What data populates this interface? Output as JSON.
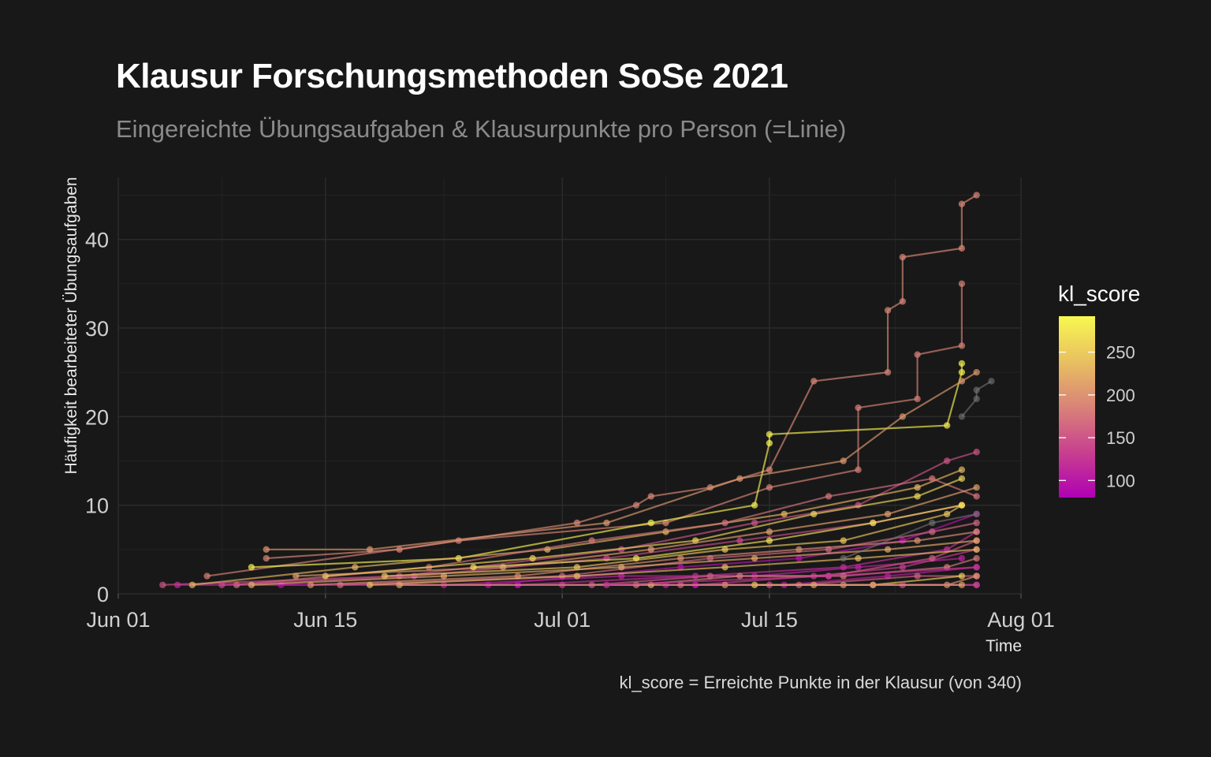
{
  "title": "Klausur Forschungsmethoden SoSe 2021",
  "subtitle": "Eingereichte Übungsaufgaben & Klausurpunkte pro Person (=Linie)",
  "caption": "kl_score = Erreichte Punkte in der Klausur (von 340)",
  "chart_data": {
    "type": "line",
    "title": "Klausur Forschungsmethoden SoSe 2021",
    "subtitle": "Eingereichte Übungsaufgaben & Klausurpunkte pro Person (=Linie)",
    "xlabel": "Time",
    "ylabel": "Häufigkeit bearbeiteter Übungsaufgaben",
    "x_ticks": [
      "Jun 01",
      "Jun 15",
      "Jul 01",
      "Jul 15",
      "Aug 01"
    ],
    "x_tick_dates": [
      "2021-06-01",
      "2021-06-15",
      "2021-07-01",
      "2021-07-15",
      "2021-08-01"
    ],
    "xlim": [
      "2021-06-01",
      "2021-08-01"
    ],
    "y_ticks": [
      0,
      10,
      20,
      30,
      40
    ],
    "ylim": [
      0,
      47
    ],
    "grid": true,
    "background": "#181818",
    "legend": {
      "title": "kl_score",
      "position": "right",
      "type": "colorbar",
      "range": [
        80,
        292
      ],
      "ticks": [
        100,
        150,
        200,
        250
      ],
      "colors": [
        "#b000b3",
        "#c8408f",
        "#d98378",
        "#e8c060",
        "#f8f850"
      ]
    },
    "series": [
      {
        "kl_score": 190,
        "points": [
          [
            "2021-06-11",
            4
          ],
          [
            "2021-06-20",
            5
          ],
          [
            "2021-07-02",
            8
          ],
          [
            "2021-07-06",
            10
          ],
          [
            "2021-07-07",
            11
          ],
          [
            "2021-07-11",
            12
          ],
          [
            "2021-07-15",
            14
          ],
          [
            "2021-07-18",
            24
          ],
          [
            "2021-07-23",
            25
          ],
          [
            "2021-07-23",
            32
          ],
          [
            "2021-07-24",
            33
          ],
          [
            "2021-07-24",
            38
          ],
          [
            "2021-07-28",
            39
          ],
          [
            "2021-07-28",
            44
          ],
          [
            "2021-07-29",
            45
          ]
        ]
      },
      {
        "kl_score": 185,
        "points": [
          [
            "2021-06-07",
            2
          ],
          [
            "2021-06-24",
            6
          ],
          [
            "2021-07-08",
            8
          ],
          [
            "2021-07-15",
            12
          ],
          [
            "2021-07-21",
            14
          ],
          [
            "2021-07-21",
            21
          ],
          [
            "2021-07-25",
            22
          ],
          [
            "2021-07-25",
            27
          ],
          [
            "2021-07-28",
            28
          ],
          [
            "2021-07-28",
            35
          ]
        ]
      },
      {
        "kl_score": 285,
        "points": [
          [
            "2021-06-10",
            3
          ],
          [
            "2021-06-24",
            4
          ],
          [
            "2021-07-07",
            8
          ],
          [
            "2021-07-14",
            10
          ],
          [
            "2021-07-15",
            17
          ],
          [
            "2021-07-15",
            18
          ],
          [
            "2021-07-27",
            19
          ],
          [
            "2021-07-28",
            25
          ],
          [
            "2021-07-28",
            26
          ]
        ]
      },
      {
        "kl_score": 205,
        "points": [
          [
            "2021-06-11",
            5
          ],
          [
            "2021-06-18",
            5
          ],
          [
            "2021-07-04",
            8
          ],
          [
            "2021-07-13",
            13
          ],
          [
            "2021-07-20",
            15
          ],
          [
            "2021-07-24",
            20
          ],
          [
            "2021-07-28",
            24
          ],
          [
            "2021-07-29",
            25
          ]
        ]
      },
      {
        "kl_score": 150,
        "points": [
          [
            "2021-06-04",
            1
          ],
          [
            "2021-06-20",
            2
          ],
          [
            "2021-07-05",
            5
          ],
          [
            "2021-07-14",
            8
          ],
          [
            "2021-07-21",
            10
          ],
          [
            "2021-07-27",
            15
          ],
          [
            "2021-07-29",
            16
          ]
        ]
      },
      {
        "kl_score": 120,
        "points": [
          [
            "2021-06-05",
            1
          ],
          [
            "2021-06-28",
            1
          ],
          [
            "2021-07-10",
            2
          ],
          [
            "2021-07-20",
            3
          ],
          [
            "2021-07-27",
            5
          ],
          [
            "2021-07-29",
            7
          ]
        ]
      },
      {
        "kl_score": 230,
        "points": [
          [
            "2021-06-06",
            1
          ],
          [
            "2021-06-17",
            3
          ],
          [
            "2021-06-30",
            5
          ],
          [
            "2021-07-08",
            7
          ],
          [
            "2021-07-16",
            9
          ],
          [
            "2021-07-25",
            12
          ],
          [
            "2021-07-28",
            14
          ]
        ]
      },
      {
        "kl_score": 175,
        "points": [
          [
            "2021-06-09",
            1
          ],
          [
            "2021-06-22",
            3
          ],
          [
            "2021-07-03",
            6
          ],
          [
            "2021-07-12",
            8
          ],
          [
            "2021-07-19",
            11
          ],
          [
            "2021-07-26",
            13
          ],
          [
            "2021-07-29",
            11
          ]
        ]
      },
      {
        "kl_score": 95,
        "points": [
          [
            "2021-06-12",
            1
          ],
          [
            "2021-06-26",
            1
          ],
          [
            "2021-07-09",
            3
          ],
          [
            "2021-07-17",
            4
          ],
          [
            "2021-07-24",
            6
          ],
          [
            "2021-07-29",
            9
          ]
        ]
      },
      {
        "kl_score": 260,
        "points": [
          [
            "2021-06-15",
            2
          ],
          [
            "2021-06-29",
            4
          ],
          [
            "2021-07-10",
            6
          ],
          [
            "2021-07-18",
            9
          ],
          [
            "2021-07-25",
            11
          ],
          [
            "2021-07-28",
            13
          ]
        ]
      },
      {
        "kl_score": 140,
        "points": [
          [
            "2021-06-08",
            1
          ],
          [
            "2021-06-21",
            2
          ],
          [
            "2021-07-04",
            4
          ],
          [
            "2021-07-13",
            6
          ],
          [
            "2021-07-22",
            8
          ],
          [
            "2021-07-28",
            10
          ]
        ]
      },
      {
        "kl_score": 210,
        "points": [
          [
            "2021-06-13",
            2
          ],
          [
            "2021-06-27",
            3
          ],
          [
            "2021-07-07",
            5
          ],
          [
            "2021-07-15",
            7
          ],
          [
            "2021-07-23",
            9
          ],
          [
            "2021-07-29",
            12
          ]
        ]
      },
      {
        "kl_score": 165,
        "points": [
          [
            "2021-06-16",
            1
          ],
          [
            "2021-07-01",
            2
          ],
          [
            "2021-07-11",
            4
          ],
          [
            "2021-07-19",
            5
          ],
          [
            "2021-07-26",
            7
          ],
          [
            "2021-07-29",
            8
          ]
        ]
      },
      {
        "kl_score": 245,
        "points": [
          [
            "2021-06-19",
            2
          ],
          [
            "2021-07-02",
            3
          ],
          [
            "2021-07-12",
            5
          ],
          [
            "2021-07-20",
            6
          ],
          [
            "2021-07-27",
            9
          ],
          [
            "2021-07-28",
            10
          ]
        ]
      },
      {
        "kl_score": 110,
        "points": [
          [
            "2021-06-23",
            1
          ],
          [
            "2021-07-05",
            2
          ],
          [
            "2021-07-14",
            2
          ],
          [
            "2021-07-21",
            3
          ],
          [
            "2021-07-28",
            4
          ]
        ]
      },
      {
        "kl_score": 195,
        "points": [
          [
            "2021-06-14",
            1
          ],
          [
            "2021-06-28",
            2
          ],
          [
            "2021-07-09",
            4
          ],
          [
            "2021-07-17",
            5
          ],
          [
            "2021-07-25",
            6
          ],
          [
            "2021-07-29",
            7
          ]
        ]
      },
      {
        "kl_score": 130,
        "points": [
          [
            "2021-07-01",
            1
          ],
          [
            "2021-07-10",
            1
          ],
          [
            "2021-07-18",
            2
          ],
          [
            "2021-07-24",
            3
          ],
          [
            "2021-07-29",
            5
          ]
        ]
      },
      {
        "kl_score": 270,
        "points": [
          [
            "2021-06-25",
            3
          ],
          [
            "2021-07-06",
            4
          ],
          [
            "2021-07-15",
            6
          ],
          [
            "2021-07-22",
            8
          ],
          [
            "2021-07-28",
            10
          ]
        ]
      },
      {
        "kl_score": 155,
        "points": [
          [
            "2021-07-03",
            1
          ],
          [
            "2021-07-11",
            2
          ],
          [
            "2021-07-19",
            2
          ],
          [
            "2021-07-26",
            4
          ],
          [
            "2021-07-29",
            6
          ]
        ]
      },
      {
        "kl_score": 220,
        "points": [
          [
            "2021-06-10",
            1
          ],
          [
            "2021-06-23",
            2
          ],
          [
            "2021-07-05",
            3
          ],
          [
            "2021-07-14",
            4
          ],
          [
            "2021-07-23",
            5
          ],
          [
            "2021-07-29",
            6
          ]
        ]
      },
      {
        "kl_score": 180,
        "points": [
          [
            "2021-07-06",
            1
          ],
          [
            "2021-07-13",
            2
          ],
          [
            "2021-07-20",
            2
          ],
          [
            "2021-07-27",
            3
          ],
          [
            "2021-07-29",
            4
          ]
        ]
      },
      {
        "kl_score": 105,
        "points": [
          [
            "2021-07-08",
            1
          ],
          [
            "2021-07-16",
            1
          ],
          [
            "2021-07-23",
            2
          ],
          [
            "2021-07-29",
            3
          ]
        ]
      },
      {
        "kl_score": 235,
        "points": [
          [
            "2021-06-18",
            1
          ],
          [
            "2021-07-02",
            2
          ],
          [
            "2021-07-12",
            3
          ],
          [
            "2021-07-21",
            4
          ],
          [
            "2021-07-29",
            5
          ]
        ]
      },
      {
        "kl_score": 160,
        "points": [
          [
            "2021-07-09",
            1
          ],
          [
            "2021-07-17",
            1
          ],
          [
            "2021-07-25",
            2
          ],
          [
            "2021-07-29",
            2
          ]
        ]
      },
      {
        "kl_score": 200,
        "points": [
          [
            "2021-07-12",
            1
          ],
          [
            "2021-07-20",
            1
          ],
          [
            "2021-07-27",
            1
          ],
          [
            "2021-07-29",
            2
          ]
        ]
      },
      {
        "kl_score": 85,
        "points": [
          [
            "2021-06-28",
            1
          ],
          [
            "2021-07-10",
            1
          ],
          [
            "2021-07-22",
            1
          ],
          [
            "2021-07-29",
            1
          ]
        ]
      },
      {
        "kl_score": 250,
        "points": [
          [
            "2021-07-14",
            1
          ],
          [
            "2021-07-22",
            1
          ],
          [
            "2021-07-28",
            2
          ]
        ]
      },
      {
        "kl_score": 145,
        "points": [
          [
            "2021-07-15",
            1
          ],
          [
            "2021-07-24",
            1
          ],
          [
            "2021-07-29",
            1
          ]
        ]
      },
      {
        "kl_score": 215,
        "points": [
          [
            "2021-06-20",
            1
          ],
          [
            "2021-07-07",
            1
          ],
          [
            "2021-07-18",
            1
          ],
          [
            "2021-07-28",
            1
          ]
        ]
      },
      {
        "kl_score": 125,
        "points": [
          [
            "2021-07-04",
            1
          ],
          [
            "2021-07-19",
            2
          ],
          [
            "2021-07-29",
            3
          ]
        ]
      }
    ],
    "grey_series": [
      {
        "points": [
          [
            "2021-07-28",
            20
          ],
          [
            "2021-07-29",
            22
          ],
          [
            "2021-07-29",
            23
          ],
          [
            "2021-07-30",
            24
          ]
        ]
      },
      {
        "points": [
          [
            "2021-07-20",
            4
          ],
          [
            "2021-07-26",
            8
          ],
          [
            "2021-07-29",
            9
          ]
        ]
      }
    ]
  }
}
